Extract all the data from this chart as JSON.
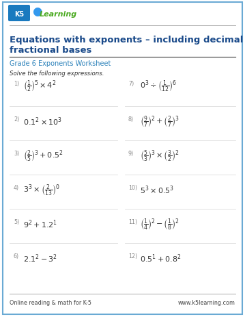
{
  "title_line1": "Equations with exponents – including decimal and",
  "title_line2": "fractional bases",
  "subtitle": "Grade 6 Exponents Worksheet",
  "instruction": "Solve the following expressions.",
  "footer_left": "Online reading & math for K-5",
  "footer_right": "www.k5learning.com",
  "title_color": "#1a4a8a",
  "subtitle_color": "#2980b9",
  "border_color": "#6aaad4",
  "bg_color": "#ffffff",
  "text_color": "#333333",
  "num_color": "#888888",
  "logo_k5_bg": "#1a7abf",
  "logo_learning_color": "#4aaa20",
  "separator_color": "#dddddd",
  "footer_line_color": "#aaaaaa",
  "problems_left": [
    {
      "num": "1)",
      "expr": "$\\left(\\frac{1}{2}\\right)^{\\!5}\\times 4^2$"
    },
    {
      "num": "2)",
      "expr": "$0.1^2 \\times 10^3$"
    },
    {
      "num": "3)",
      "expr": "$\\left(\\frac{2}{5}\\right)^{\\!3}+0.5^2$"
    },
    {
      "num": "4)",
      "expr": "$3^3 \\times\\left(\\frac{2}{13}\\right)^{\\!0}$"
    },
    {
      "num": "5)",
      "expr": "$9^2+1.2^1$"
    },
    {
      "num": "6)",
      "expr": "$2.1^2-3^2$"
    }
  ],
  "problems_right": [
    {
      "num": "7)",
      "expr": "$0^3\\div\\left(\\frac{1}{12}\\right)^{\\!6}$"
    },
    {
      "num": "8)",
      "expr": "$\\left(\\frac{9}{7}\\right)^{\\!2}+\\left(\\frac{2}{7}\\right)^{\\!3}$"
    },
    {
      "num": "9)",
      "expr": "$\\left(\\frac{5}{3}\\right)^{\\!3}\\times\\left(\\frac{3}{2}\\right)^{\\!2}$"
    },
    {
      "num": "10)",
      "expr": "$5^3\\times 0.5^3$"
    },
    {
      "num": "11)",
      "expr": "$\\left(\\frac{1}{4}\\right)^{\\!2}-\\left(\\frac{1}{8}\\right)^{\\!2}$"
    },
    {
      "num": "12)",
      "expr": "$0.5^1+0.8^2$"
    }
  ]
}
